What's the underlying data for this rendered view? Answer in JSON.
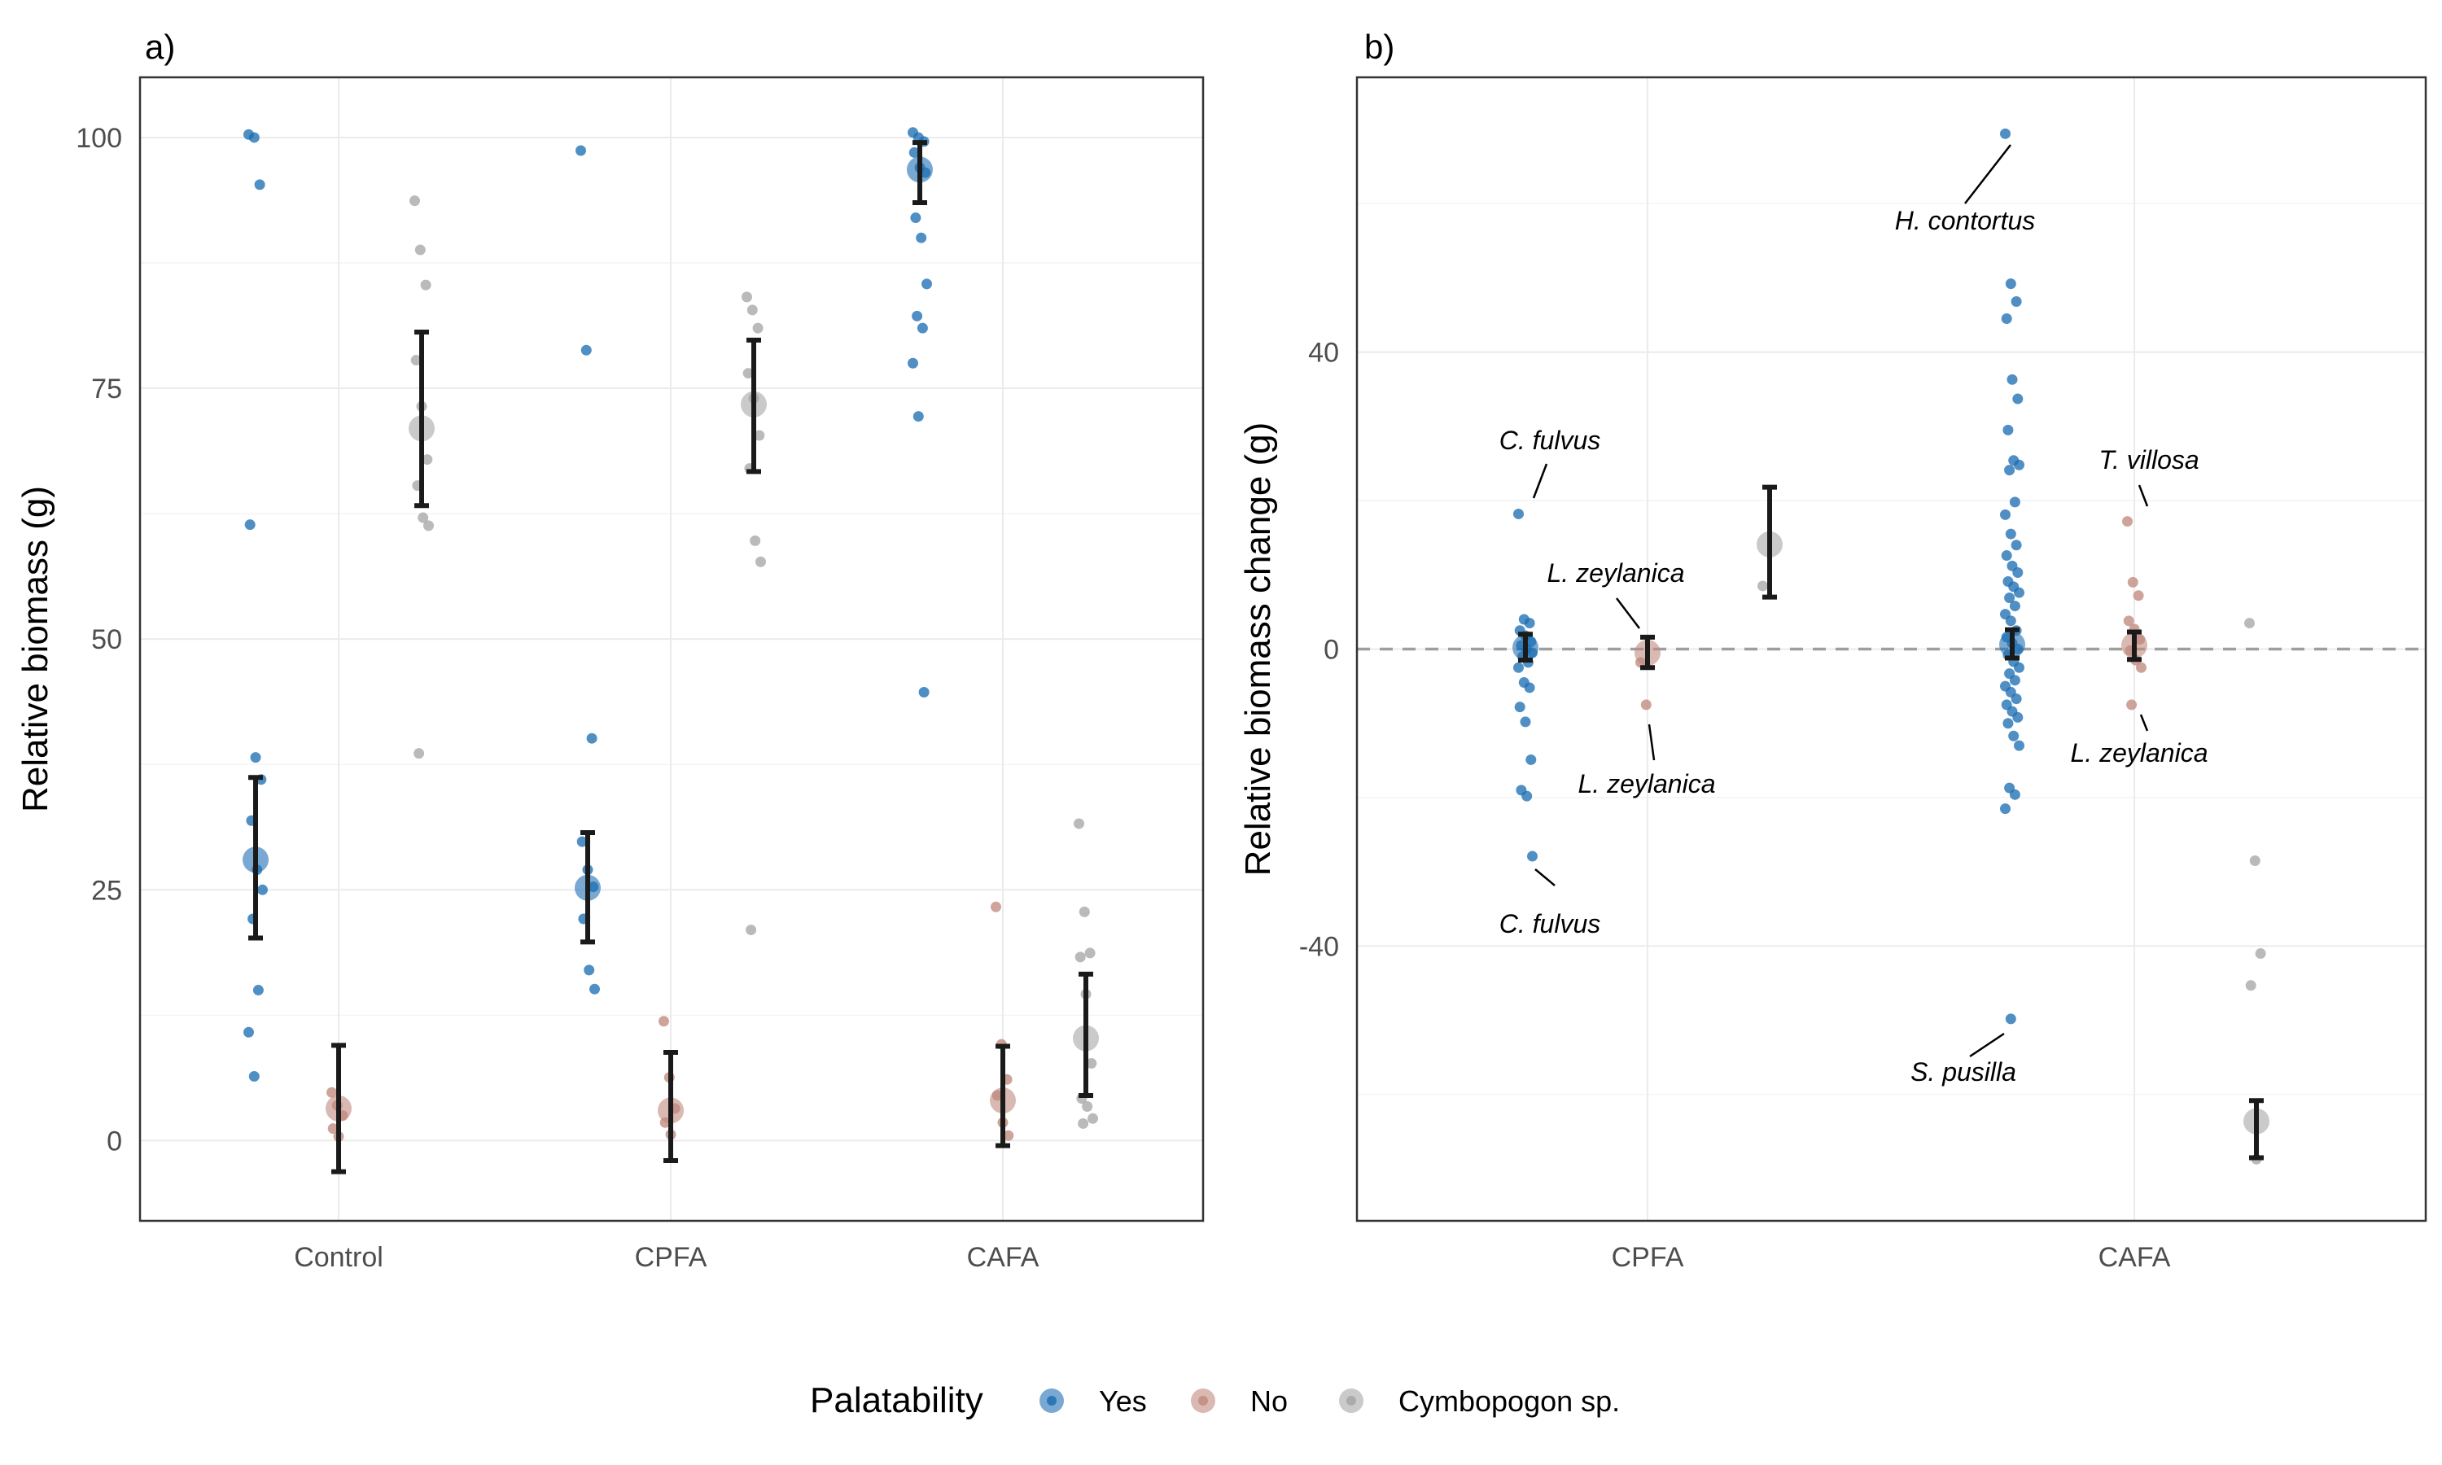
{
  "legend": {
    "title": "Palatability",
    "items": [
      {
        "label": "Yes",
        "color": "#1f6fb4"
      },
      {
        "label": "No",
        "color": "#c08b7e"
      },
      {
        "label": "Cymbopogon sp.",
        "color": "#a6a6a6"
      }
    ]
  },
  "chart_data": [
    {
      "type": "scatter",
      "panel_tag": "a)",
      "ylabel": "Relative biomass (g)",
      "xlabel": "",
      "categories": [
        "Control",
        "CPFA",
        "CAFA"
      ],
      "ylim": [
        -8,
        106
      ],
      "yticks": [
        0,
        25,
        50,
        75,
        100
      ],
      "grid": true,
      "series": [
        {
          "name": "Yes",
          "color": "#1f6fb4",
          "groups": [
            {
              "category": "Control",
              "mean": 28,
              "ci": [
                20.2,
                36.2
              ],
              "points": [
                100.3,
                100,
                95.3,
                61.4,
                38.2,
                36,
                31.9,
                27,
                25,
                22.1,
                15,
                10.8,
                6.4
              ]
            },
            {
              "category": "CPFA",
              "mean": 25.2,
              "ci": [
                19.8,
                30.7
              ],
              "points": [
                98.7,
                78.8,
                40.1,
                29.8,
                27,
                25.3,
                22.1,
                17,
                15.1
              ]
            },
            {
              "category": "CAFA",
              "mean": 96.8,
              "ci": [
                93.5,
                99.5
              ],
              "points": [
                100.5,
                100,
                99.6,
                98.5,
                97,
                96.5,
                92,
                90,
                85.4,
                82.2,
                81,
                77.5,
                72.2,
                44.7
              ]
            }
          ]
        },
        {
          "name": "No",
          "color": "#c08b7e",
          "groups": [
            {
              "category": "Control",
              "mean": 3.2,
              "ci": [
                -3.1,
                9.5
              ],
              "points": [
                4.8,
                3.5,
                2.5,
                1.2,
                0.4
              ]
            },
            {
              "category": "CPFA",
              "mean": 3,
              "ci": [
                -2,
                8.8
              ],
              "points": [
                11.9,
                6.3,
                3.2,
                1.8,
                0.6
              ]
            },
            {
              "category": "CAFA",
              "mean": 4,
              "ci": [
                -0.5,
                9.4
              ],
              "points": [
                23.3,
                9.6,
                6.1,
                4.5,
                1.8,
                0.5
              ]
            }
          ]
        },
        {
          "name": "Cymbopogon sp.",
          "color": "#a6a6a6",
          "groups": [
            {
              "category": "Control",
              "mean": 71,
              "ci": [
                63.3,
                80.6
              ],
              "points": [
                93.7,
                88.8,
                85.3,
                77.8,
                73.2,
                67.9,
                65.3,
                62.1,
                61.3,
                38.6
              ]
            },
            {
              "category": "CPFA",
              "mean": 73.4,
              "ci": [
                66.7,
                79.8
              ],
              "points": [
                84.1,
                82.8,
                81,
                76.5,
                74,
                70.3,
                67,
                59.8,
                57.7,
                21
              ]
            },
            {
              "category": "CAFA",
              "mean": 10.2,
              "ci": [
                4.5,
                16.6
              ],
              "points": [
                31.6,
                22.8,
                18.7,
                18.3,
                14.6,
                7.7,
                4.2,
                3.4,
                2.2,
                1.7
              ]
            }
          ]
        }
      ]
    },
    {
      "type": "scatter",
      "panel_tag": "b)",
      "ylabel": "Relative biomass change (g)",
      "xlabel": "",
      "categories": [
        "CPFA",
        "CAFA"
      ],
      "ylim": [
        -77,
        77
      ],
      "yticks": [
        -40,
        0,
        40
      ],
      "reference_line": {
        "y": 0,
        "style": "dashed"
      },
      "grid": true,
      "series": [
        {
          "name": "Yes",
          "color": "#1f6fb4",
          "groups": [
            {
              "category": "CPFA",
              "mean": 0.2,
              "ci": [
                -1.5,
                2
              ],
              "points": [
                18.2,
                4,
                3.5,
                2.5,
                1.8,
                1,
                0.5,
                0,
                -0.5,
                -1,
                -1.8,
                -2.5,
                -4.5,
                -5.2,
                -7.8,
                -9.8,
                -14.9,
                -19,
                -19.8,
                -27.9
              ]
            },
            {
              "category": "CAFA",
              "mean": 0.6,
              "ci": [
                -1.2,
                2.6
              ],
              "points": [
                69.4,
                49.2,
                46.8,
                44.5,
                36.3,
                33.7,
                29.5,
                25.4,
                24.8,
                24.1,
                19.8,
                18.1,
                15.5,
                14,
                12.6,
                11.2,
                10.3,
                9.1,
                8.4,
                7.6,
                6.9,
                5.8,
                4.7,
                3.8,
                2.5,
                1.6,
                0.8,
                0,
                -0.8,
                -1.7,
                -2.5,
                -3.3,
                -4.2,
                -5,
                -5.8,
                -6.7,
                -7.5,
                -8.4,
                -9.2,
                -10,
                -11.7,
                -13,
                -18.7,
                -19.6,
                -21.5,
                -49.8
              ]
            }
          ]
        },
        {
          "name": "No",
          "color": "#c08b7e",
          "groups": [
            {
              "category": "CPFA",
              "mean": -0.5,
              "ci": [
                -2.5,
                1.6
              ],
              "points": [
                -1.8,
                -7.5
              ]
            },
            {
              "category": "CAFA",
              "mean": 0.5,
              "ci": [
                -1.4,
                2.3
              ],
              "points": [
                17.2,
                9,
                7.2,
                3.8,
                2.7,
                1.3,
                -0.2,
                -1.5,
                -2.5,
                -7.5
              ]
            }
          ]
        },
        {
          "name": "Cymbopogon sp.",
          "color": "#a6a6a6",
          "groups": [
            {
              "category": "CPFA",
              "mean": 14.1,
              "ci": [
                7,
                21.8
              ],
              "points": [
                8.5
              ]
            },
            {
              "category": "CAFA",
              "mean": -63.6,
              "ci": [
                -68.5,
                -60.8
              ],
              "points": [
                3.5,
                -28.5,
                -41,
                -45.3,
                -68.7
              ]
            }
          ]
        }
      ],
      "annotations": [
        {
          "text": "H. contortus",
          "target": {
            "category": "CAFA",
            "series": "Yes",
            "y": 69.4
          }
        },
        {
          "text": "C. fulvus",
          "target": {
            "category": "CPFA",
            "series": "Yes",
            "y": 18.2
          }
        },
        {
          "text": "L. zeylanica",
          "target": {
            "category": "CPFA",
            "series": "No",
            "y": -1.8
          }
        },
        {
          "text": "L. zeylanica",
          "target": {
            "category": "CPFA",
            "series": "No",
            "y": -7.5
          }
        },
        {
          "text": "C. fulvus",
          "target": {
            "category": "CPFA",
            "series": "Yes",
            "y": -27.9
          }
        },
        {
          "text": "T. villosa",
          "target": {
            "category": "CAFA",
            "series": "No",
            "y": 17.2
          }
        },
        {
          "text": "L. zeylanica",
          "target": {
            "category": "CAFA",
            "series": "No",
            "y": -7.5
          }
        },
        {
          "text": "S. pusilla",
          "target": {
            "category": "CAFA",
            "series": "Yes",
            "y": -49.8
          }
        }
      ]
    }
  ]
}
